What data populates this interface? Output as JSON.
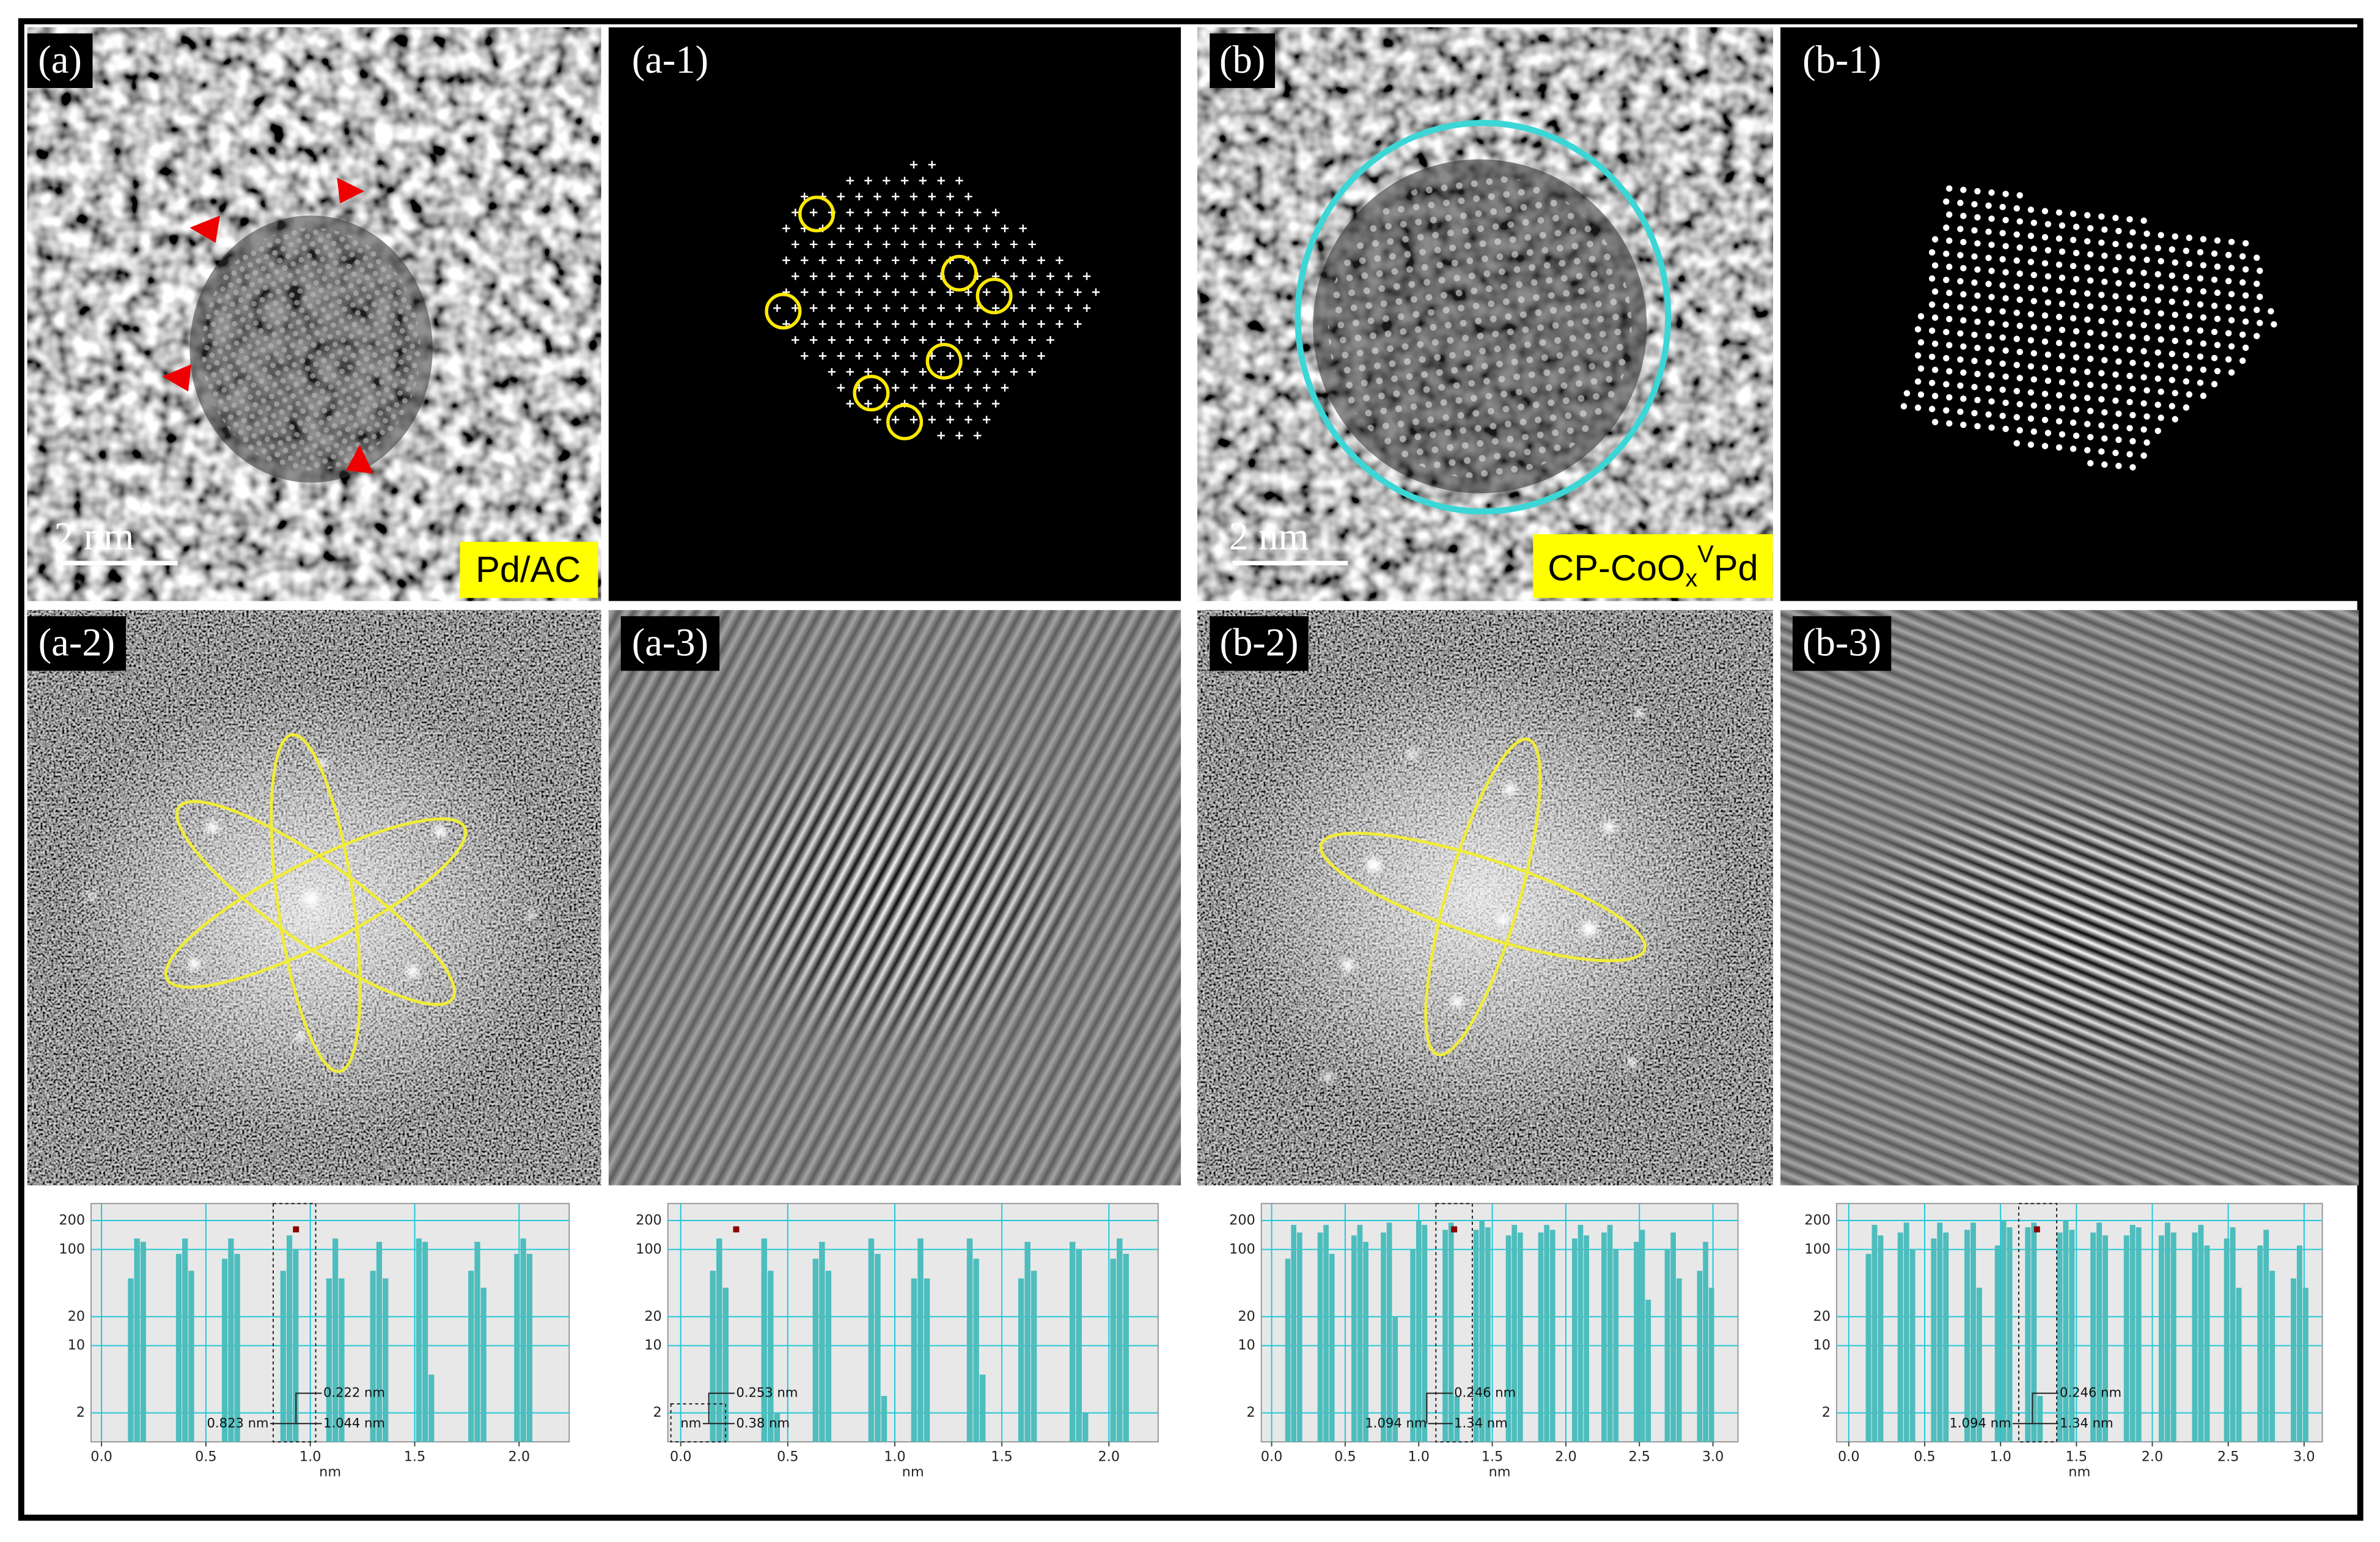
{
  "panel_labels": [
    "(a)",
    "(a-1)",
    "(b)",
    "(b-1)",
    "(a-2)",
    "(a-3)",
    "(b-2)",
    "(b-3)"
  ],
  "scale_bars": [
    "2 nm",
    "2 nm"
  ],
  "sample_labels": {
    "a": "Pd/AC",
    "b": {
      "base": "CP-CoO",
      "sub": "x",
      "sup": "V",
      "rest": "Pd"
    }
  },
  "chart_data": [
    {
      "type": "bar",
      "log_y": true,
      "grid": true,
      "color": "#4dbdbd",
      "grid_color": "#22c8d8",
      "xlabel": "nm",
      "x": [
        0.14,
        0.17,
        0.2,
        0.37,
        0.4,
        0.43,
        0.59,
        0.62,
        0.65,
        0.87,
        0.9,
        0.93,
        1.09,
        1.12,
        1.15,
        1.3,
        1.33,
        1.36,
        1.52,
        1.55,
        1.58,
        1.77,
        1.8,
        1.83,
        1.99,
        2.02,
        2.05
      ],
      "values": [
        50,
        130,
        120,
        90,
        130,
        60,
        80,
        130,
        90,
        60,
        140,
        100,
        50,
        130,
        50,
        60,
        120,
        50,
        130,
        120,
        5,
        60,
        120,
        40,
        90,
        130,
        90
      ],
      "xlim": [
        -0.05,
        2.24
      ],
      "ylim": [
        1,
        300
      ],
      "xticks": [
        {
          "value": 0,
          "label": "0.0"
        },
        0.5,
        {
          "value": 1,
          "label": "1.0"
        },
        1.5,
        {
          "value": 2,
          "label": "2.0"
        }
      ],
      "yticks": [
        2,
        10,
        20,
        100,
        200
      ],
      "annotations": [
        "0.222 nm",
        "0.823 nm",
        "1.044 nm"
      ]
    },
    {
      "type": "bar",
      "log_y": true,
      "grid": true,
      "color": "#4dbdbd",
      "grid_color": "#22c8d8",
      "xlabel": "nm",
      "x": [
        0.15,
        0.18,
        0.21,
        0.39,
        0.42,
        0.45,
        0.63,
        0.66,
        0.69,
        0.89,
        0.92,
        0.95,
        1.09,
        1.12,
        1.15,
        1.35,
        1.38,
        1.41,
        1.59,
        1.62,
        1.65,
        1.83,
        1.86,
        1.89,
        2.02,
        2.05,
        2.08
      ],
      "values": [
        60,
        130,
        40,
        130,
        60,
        2,
        80,
        120,
        60,
        130,
        90,
        3,
        50,
        130,
        50,
        130,
        80,
        5,
        50,
        120,
        60,
        120,
        100,
        2,
        80,
        130,
        90
      ],
      "xlim": [
        -0.06,
        2.23
      ],
      "ylim": [
        1,
        300
      ],
      "xticks": [
        {
          "value": 0,
          "label": "0.0"
        },
        0.5,
        {
          "value": 1,
          "label": "1.0"
        },
        1.5,
        {
          "value": 2,
          "label": "2.0"
        }
      ],
      "yticks": [
        2,
        10,
        20,
        100,
        200
      ],
      "annotations": [
        "0.253 nm",
        "nm",
        "0.38 nm"
      ]
    },
    {
      "type": "bar",
      "log_y": true,
      "grid": true,
      "color": "#4dbdbd",
      "grid_color": "#22c8d8",
      "xlabel": "nm",
      "x": [
        0.11,
        0.15,
        0.19,
        0.33,
        0.37,
        0.41,
        0.56,
        0.6,
        0.64,
        0.76,
        0.8,
        0.84,
        0.96,
        1.0,
        1.04,
        1.18,
        1.22,
        1.26,
        1.39,
        1.43,
        1.47,
        1.61,
        1.65,
        1.69,
        1.83,
        1.87,
        1.91,
        2.06,
        2.1,
        2.14,
        2.26,
        2.3,
        2.34,
        2.48,
        2.52,
        2.56,
        2.69,
        2.73,
        2.77,
        2.91,
        2.95,
        2.99
      ],
      "values": [
        80,
        180,
        150,
        150,
        180,
        90,
        140,
        180,
        120,
        150,
        190,
        20,
        100,
        200,
        180,
        160,
        190,
        3,
        160,
        200,
        170,
        140,
        180,
        150,
        150,
        180,
        160,
        130,
        180,
        140,
        150,
        180,
        100,
        120,
        160,
        30,
        100,
        150,
        50,
        60,
        120,
        40
      ],
      "xlim": [
        -0.07,
        3.17
      ],
      "ylim": [
        1,
        300
      ],
      "xticks": [
        {
          "value": 0,
          "label": "0.0"
        },
        0.5,
        {
          "value": 1,
          "label": "1.0"
        },
        1.5,
        {
          "value": 2,
          "label": "2.0"
        },
        2.5,
        {
          "value": 3,
          "label": "3.0"
        }
      ],
      "yticks": [
        2,
        10,
        20,
        100,
        200
      ],
      "annotations": [
        "0.246 nm",
        "1.094 nm",
        "1.34 nm"
      ]
    },
    {
      "type": "bar",
      "log_y": true,
      "grid": true,
      "color": "#4dbdbd",
      "grid_color": "#22c8d8",
      "xlabel": "nm",
      "x": [
        0.13,
        0.17,
        0.21,
        0.34,
        0.38,
        0.42,
        0.56,
        0.6,
        0.64,
        0.78,
        0.82,
        0.86,
        0.98,
        1.02,
        1.06,
        1.18,
        1.22,
        1.26,
        1.39,
        1.43,
        1.47,
        1.61,
        1.65,
        1.69,
        1.83,
        1.87,
        1.91,
        2.06,
        2.1,
        2.14,
        2.28,
        2.32,
        2.36,
        2.49,
        2.53,
        2.57,
        2.71,
        2.75,
        2.79,
        2.93,
        2.97,
        3.01
      ],
      "values": [
        90,
        180,
        140,
        150,
        190,
        100,
        130,
        190,
        150,
        160,
        190,
        40,
        110,
        200,
        170,
        170,
        190,
        3,
        150,
        200,
        160,
        150,
        190,
        140,
        140,
        180,
        170,
        140,
        190,
        150,
        150,
        180,
        110,
        130,
        170,
        40,
        110,
        160,
        60,
        50,
        110,
        40
      ],
      "xlim": [
        -0.08,
        3.12
      ],
      "ylim": [
        1,
        300
      ],
      "xticks": [
        {
          "value": 0,
          "label": "0.0"
        },
        0.5,
        {
          "value": 1,
          "label": "1.0"
        },
        1.5,
        {
          "value": 2,
          "label": "2.0"
        },
        2.5,
        {
          "value": 3,
          "label": "3.0"
        }
      ],
      "yticks": [
        2,
        10,
        20,
        100,
        200
      ],
      "annotations": [
        "0.246 nm",
        "1.094 nm",
        "1.34 nm"
      ]
    }
  ]
}
